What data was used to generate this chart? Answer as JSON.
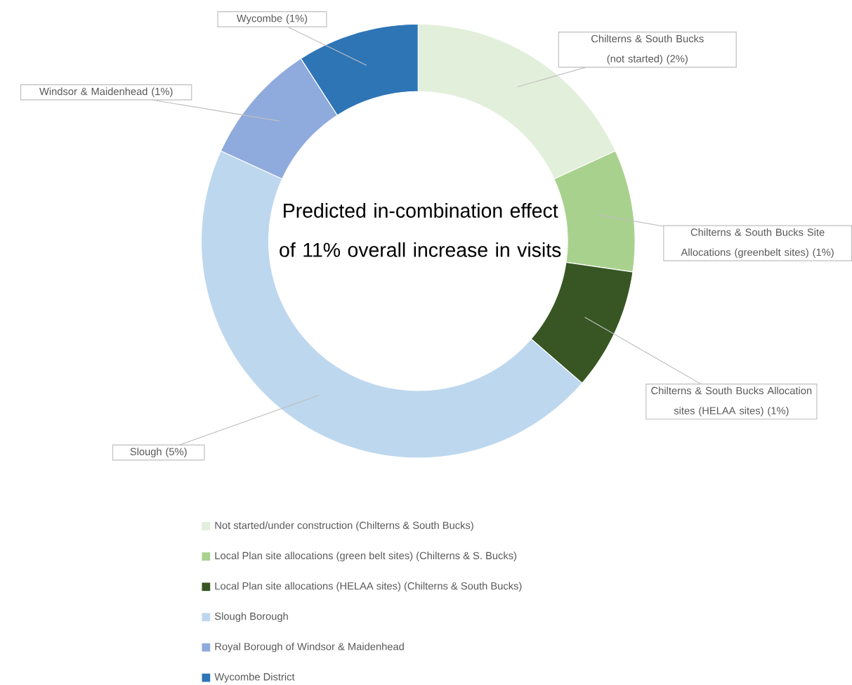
{
  "chart_data": {
    "type": "donut",
    "title": "Predicted in-combination effect of 11% overall increase in visits",
    "categories": [
      "Not started/under construction (Chilterns & South Bucks)",
      "Local Plan site allocations (green belt sites) (Chilterns & S. Bucks)",
      "Local Plan site allocations (HELAA sites) (Chilterns & South Bucks)",
      "Slough Borough",
      "Royal Borough of Windsor & Maidenhead",
      "Wycombe District"
    ],
    "values": [
      2,
      1,
      1,
      5,
      1,
      1
    ],
    "value_labels": [
      "Chilterns & South Bucks (not started) (2%)",
      "Chilterns & South Bucks Site Allocations (greenbelt sites) (1%)",
      "Chilterns & South Bucks Allocation sites (HELAA sites) (1%)",
      "Slough (5%)",
      "Windsor & Maidenhead (1%)",
      "Wycombe (1%)"
    ],
    "colors": [
      "#e2efda",
      "#a9d18e",
      "#375623",
      "#bdd7ee",
      "#8faadc",
      "#2e75b6"
    ],
    "legend": "bottom"
  }
}
